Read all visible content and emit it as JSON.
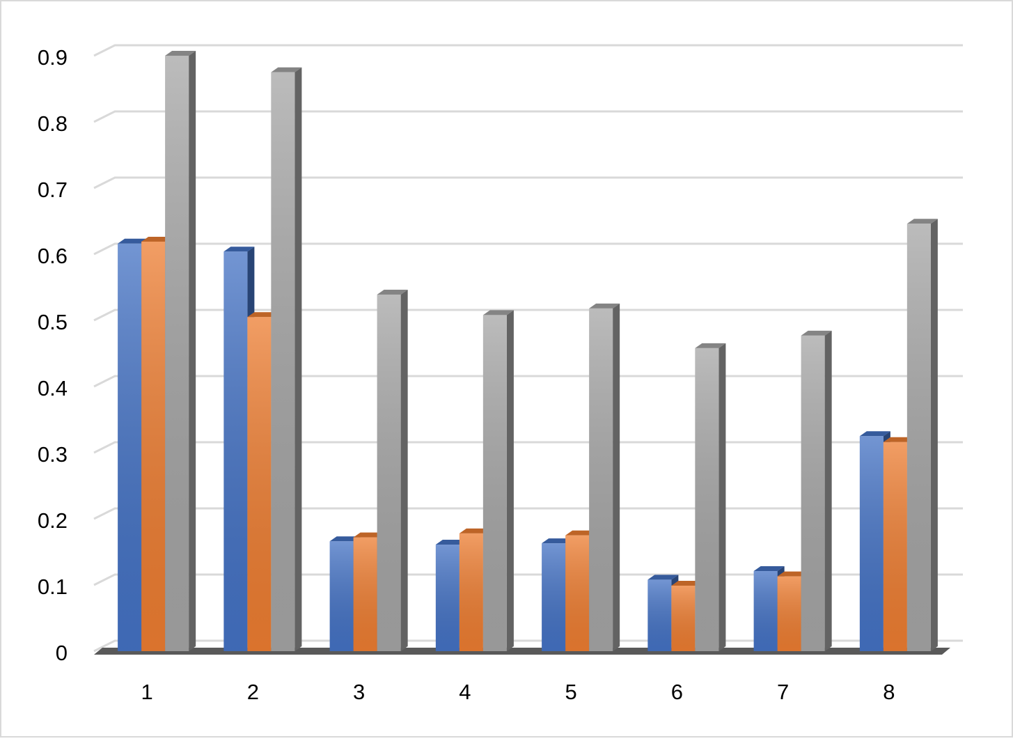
{
  "chart_data": {
    "type": "bar3d",
    "categories": [
      "1",
      "2",
      "3",
      "4",
      "5",
      "6",
      "7",
      "8"
    ],
    "series": [
      {
        "color": "#4472c4",
        "values": [
          0.616,
          0.604,
          0.166,
          0.161,
          0.163,
          0.108,
          0.121,
          0.325
        ]
      },
      {
        "color": "#ed7d31",
        "values": [
          0.619,
          0.505,
          0.172,
          0.178,
          0.175,
          0.099,
          0.113,
          0.316
        ]
      },
      {
        "color": "#a5a5a5",
        "values": [
          0.9,
          0.875,
          0.539,
          0.508,
          0.518,
          0.458,
          0.477,
          0.646
        ]
      }
    ],
    "ylim": [
      0,
      0.9
    ],
    "yticks": [
      0,
      0.1,
      0.2,
      0.3,
      0.4,
      0.5,
      0.6,
      0.7,
      0.8,
      0.9
    ],
    "grid": true
  }
}
